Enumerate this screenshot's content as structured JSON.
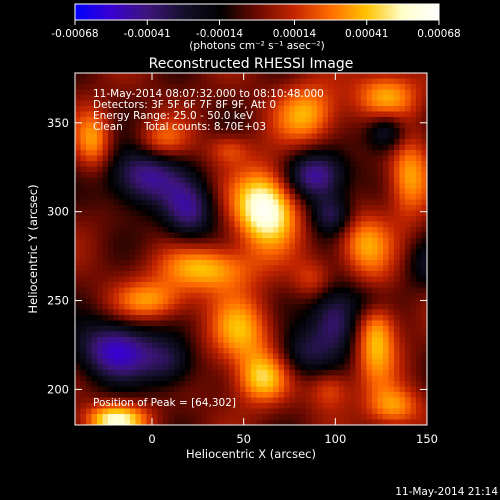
{
  "colorbar": {
    "ticks": [
      "-0.00068",
      "-0.00041",
      "-0.00014",
      "0.00014",
      "0.00041",
      "0.00068"
    ],
    "tick_values": [
      -0.00068,
      -0.00041,
      -0.00014,
      0.00014,
      0.00041,
      0.00068
    ],
    "range": [
      -0.00068,
      0.00068
    ],
    "units_label": "(photons cm⁻² s⁻¹ asec⁻²)",
    "colors": [
      "#0000ff",
      "#3a00d0",
      "#3d157a",
      "#14102a",
      "#000000",
      "#6b0a00",
      "#c22400",
      "#ff6a00",
      "#ffc200",
      "#ffffcc",
      "#ffffff"
    ]
  },
  "chart_data": {
    "type": "heatmap",
    "title": "Reconstructed RHESSI Image",
    "xlabel": "Heliocentric X (arcsec)",
    "ylabel": "Heliocentric Y (arcsec)",
    "xlim": [
      -42,
      150
    ],
    "ylim": [
      180,
      378
    ],
    "x_ticks": [
      0,
      50,
      100,
      150
    ],
    "y_ticks": [
      200,
      250,
      300,
      350
    ],
    "peak": [
      64,
      302
    ],
    "blobs": [
      {
        "x": 62,
        "y": 302,
        "amp": 1.0,
        "sx": 12,
        "sy": 15
      },
      {
        "x": 30,
        "y": 268,
        "amp": 0.6,
        "sx": 18,
        "sy": 9
      },
      {
        "x": 0,
        "y": 250,
        "amp": 0.5,
        "sx": 14,
        "sy": 8
      },
      {
        "x": 48,
        "y": 232,
        "amp": 0.55,
        "sx": 12,
        "sy": 14
      },
      {
        "x": 60,
        "y": 206,
        "amp": 0.6,
        "sx": 10,
        "sy": 10
      },
      {
        "x": -20,
        "y": 183,
        "amp": 0.8,
        "sx": 12,
        "sy": 6
      },
      {
        "x": -32,
        "y": 340,
        "amp": 0.5,
        "sx": 7,
        "sy": 12
      },
      {
        "x": 5,
        "y": 340,
        "amp": 0.4,
        "sx": 10,
        "sy": 8
      },
      {
        "x": 85,
        "y": 355,
        "amp": 0.55,
        "sx": 12,
        "sy": 12
      },
      {
        "x": 128,
        "y": 365,
        "amp": 0.55,
        "sx": 12,
        "sy": 10
      },
      {
        "x": 140,
        "y": 320,
        "amp": 0.55,
        "sx": 8,
        "sy": 16
      },
      {
        "x": 115,
        "y": 282,
        "amp": 0.5,
        "sx": 10,
        "sy": 12
      },
      {
        "x": 122,
        "y": 232,
        "amp": 0.65,
        "sx": 8,
        "sy": 20
      },
      {
        "x": 132,
        "y": 190,
        "amp": 0.5,
        "sx": 10,
        "sy": 8
      },
      {
        "x": 97,
        "y": 200,
        "amp": 0.35,
        "sx": 8,
        "sy": 8
      },
      {
        "x": 88,
        "y": 262,
        "amp": 0.3,
        "sx": 8,
        "sy": 8
      },
      {
        "x": 42,
        "y": 335,
        "amp": 0.3,
        "sx": 8,
        "sy": 6
      },
      {
        "x": -5,
        "y": 320,
        "amp": -0.7,
        "sx": 14,
        "sy": 12
      },
      {
        "x": 20,
        "y": 300,
        "amp": -0.6,
        "sx": 10,
        "sy": 12
      },
      {
        "x": 90,
        "y": 320,
        "amp": -0.75,
        "sx": 12,
        "sy": 10
      },
      {
        "x": 98,
        "y": 298,
        "amp": -0.5,
        "sx": 8,
        "sy": 8
      },
      {
        "x": 128,
        "y": 345,
        "amp": -0.55,
        "sx": 8,
        "sy": 8
      },
      {
        "x": 100,
        "y": 240,
        "amp": -0.65,
        "sx": 10,
        "sy": 14
      },
      {
        "x": -20,
        "y": 222,
        "amp": -0.75,
        "sx": 16,
        "sy": 12
      },
      {
        "x": 10,
        "y": 215,
        "amp": -0.45,
        "sx": 10,
        "sy": 10
      },
      {
        "x": 120,
        "y": 250,
        "amp": -0.35,
        "sx": 8,
        "sy": 8
      },
      {
        "x": 82,
        "y": 220,
        "amp": -0.4,
        "sx": 10,
        "sy": 10
      },
      {
        "x": 150,
        "y": 270,
        "amp": -0.3,
        "sx": 8,
        "sy": 10
      }
    ]
  },
  "info": {
    "time_range": "11-May-2014 08:07:32.000 to 08:10:48.000",
    "detectors": "Detectors: 3F 5F 6F 7F 8F 9F, Att 0",
    "energy": "Energy Range: 25.0 - 50.0 keV",
    "method": "Clean",
    "counts": "Total counts: 8.70E+03",
    "peak_label": "Position of Peak = [64,302]"
  },
  "footer": {
    "date": "11-May-2014 21:14"
  }
}
